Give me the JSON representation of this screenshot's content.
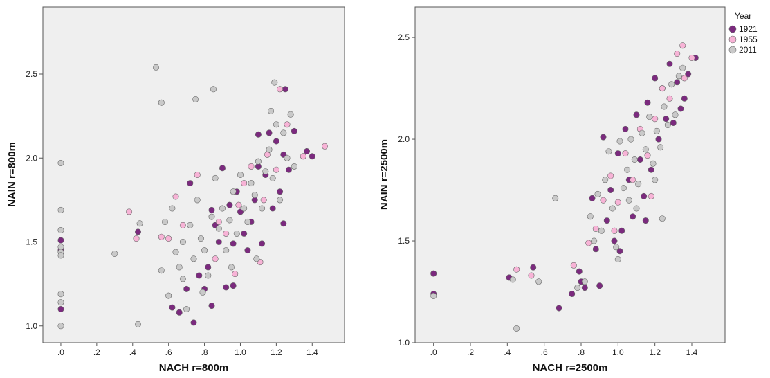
{
  "legend": {
    "title": "Year",
    "entries": [
      {
        "label": "1921",
        "color": "#7B2A7E"
      },
      {
        "label": "1955",
        "color": "#F7B3D6"
      },
      {
        "label": "2011",
        "color": "#C9C9C9"
      }
    ]
  },
  "colors": {
    "plot_background": "#EFEFEF",
    "axis": "#555555",
    "marker_edge": "#666666"
  },
  "chart_data": [
    {
      "type": "scatter",
      "xlabel": "NACH r=800m",
      "ylabel": "NAIN r=800m",
      "xlim": [
        -0.1,
        1.58
      ],
      "ylim": [
        0.9,
        2.9
      ],
      "xticks": [
        0,
        0.2,
        0.4,
        0.6,
        0.8,
        1.0,
        1.2,
        1.4
      ],
      "xtick_labels": [
        ".0",
        ".2",
        ".4",
        ".6",
        ".8",
        "1.0",
        "1.2",
        "1.4"
      ],
      "yticks": [
        1.0,
        1.5,
        2.0,
        2.5
      ],
      "ytick_labels": [
        "1.0",
        "1.5",
        "2.0",
        "2.5"
      ],
      "grid": false,
      "series": [
        {
          "name": "1921",
          "points": [
            [
              0,
              1.51
            ],
            [
              0,
              1.1
            ],
            [
              0,
              1.45
            ],
            [
              0.43,
              1.56
            ],
            [
              0.62,
              1.11
            ],
            [
              0.66,
              1.08
            ],
            [
              0.7,
              1.22
            ],
            [
              0.72,
              1.85
            ],
            [
              0.74,
              1.02
            ],
            [
              0.77,
              1.3
            ],
            [
              0.8,
              1.22
            ],
            [
              0.82,
              1.35
            ],
            [
              0.84,
              1.12
            ],
            [
              0.86,
              1.6
            ],
            [
              0.88,
              1.5
            ],
            [
              0.9,
              1.94
            ],
            [
              0.92,
              1.23
            ],
            [
              0.94,
              1.72
            ],
            [
              0.96,
              1.24
            ],
            [
              0.98,
              1.8
            ],
            [
              1.0,
              1.68
            ],
            [
              1.02,
              1.55
            ],
            [
              1.04,
              1.45
            ],
            [
              1.06,
              1.62
            ],
            [
              1.08,
              1.75
            ],
            [
              1.1,
              2.14
            ],
            [
              1.12,
              1.49
            ],
            [
              1.14,
              1.9
            ],
            [
              1.16,
              2.15
            ],
            [
              1.18,
              1.7
            ],
            [
              1.2,
              2.1
            ],
            [
              1.22,
              1.8
            ],
            [
              1.24,
              2.02
            ],
            [
              1.25,
              2.41
            ],
            [
              1.27,
              1.93
            ],
            [
              1.3,
              2.16
            ],
            [
              1.37,
              2.04
            ],
            [
              1.4,
              2.01
            ],
            [
              1.24,
              1.61
            ],
            [
              0.96,
              1.49
            ],
            [
              1.1,
              1.95
            ],
            [
              0.84,
              1.69
            ]
          ]
        },
        {
          "name": "1955",
          "points": [
            [
              0.38,
              1.68
            ],
            [
              0.42,
              1.52
            ],
            [
              0.56,
              1.53
            ],
            [
              0.6,
              1.52
            ],
            [
              0.64,
              1.77
            ],
            [
              0.68,
              1.6
            ],
            [
              0.76,
              1.9
            ],
            [
              0.86,
              1.4
            ],
            [
              0.92,
              1.55
            ],
            [
              0.97,
              1.31
            ],
            [
              1.02,
              1.85
            ],
            [
              1.06,
              1.95
            ],
            [
              1.11,
              1.38
            ],
            [
              1.15,
              2.02
            ],
            [
              1.22,
              2.41
            ],
            [
              1.26,
              2.2
            ],
            [
              1.35,
              2.01
            ],
            [
              1.47,
              2.07
            ],
            [
              1.2,
              1.93
            ],
            [
              0.99,
              1.72
            ],
            [
              1.13,
              1.75
            ],
            [
              0.88,
              1.62
            ]
          ]
        },
        {
          "name": "2011",
          "points": [
            [
              0,
              1.97
            ],
            [
              0,
              1.69
            ],
            [
              0,
              1.57
            ],
            [
              0,
              1.47
            ],
            [
              0,
              1.44
            ],
            [
              0,
              1.42
            ],
            [
              0,
              1.19
            ],
            [
              0,
              1.14
            ],
            [
              0,
              1.0
            ],
            [
              0.3,
              1.43
            ],
            [
              0.44,
              1.61
            ],
            [
              0.43,
              1.01
            ],
            [
              0.53,
              2.54
            ],
            [
              0.56,
              2.33
            ],
            [
              0.75,
              2.35
            ],
            [
              0.85,
              2.41
            ],
            [
              1.19,
              2.45
            ],
            [
              0.56,
              1.33
            ],
            [
              0.58,
              1.62
            ],
            [
              0.6,
              1.18
            ],
            [
              0.62,
              1.7
            ],
            [
              0.64,
              1.44
            ],
            [
              0.66,
              1.35
            ],
            [
              0.68,
              1.5
            ],
            [
              0.7,
              1.1
            ],
            [
              0.72,
              1.6
            ],
            [
              0.74,
              1.4
            ],
            [
              0.76,
              1.75
            ],
            [
              0.78,
              1.52
            ],
            [
              0.8,
              1.45
            ],
            [
              0.82,
              1.3
            ],
            [
              0.84,
              1.65
            ],
            [
              0.86,
              1.88
            ],
            [
              0.88,
              1.58
            ],
            [
              0.9,
              1.7
            ],
            [
              0.92,
              1.45
            ],
            [
              0.94,
              1.63
            ],
            [
              0.96,
              1.8
            ],
            [
              0.98,
              1.55
            ],
            [
              1.0,
              1.9
            ],
            [
              1.02,
              1.7
            ],
            [
              1.04,
              1.62
            ],
            [
              1.06,
              1.85
            ],
            [
              1.08,
              1.78
            ],
            [
              1.1,
              1.98
            ],
            [
              1.12,
              1.7
            ],
            [
              1.14,
              1.92
            ],
            [
              1.16,
              2.05
            ],
            [
              1.18,
              1.88
            ],
            [
              1.2,
              2.2
            ],
            [
              1.22,
              1.75
            ],
            [
              1.24,
              2.15
            ],
            [
              1.26,
              2.0
            ],
            [
              1.28,
              2.26
            ],
            [
              1.3,
              1.95
            ],
            [
              1.17,
              2.28
            ],
            [
              1.09,
              1.4
            ],
            [
              0.95,
              1.35
            ],
            [
              0.68,
              1.28
            ],
            [
              0.79,
              1.2
            ]
          ]
        }
      ]
    },
    {
      "type": "scatter",
      "xlabel": "NACH r=2500m",
      "ylabel": "NAIN r=2500m",
      "xlim": [
        -0.1,
        1.58
      ],
      "ylim": [
        1.0,
        2.65
      ],
      "xticks": [
        0,
        0.2,
        0.4,
        0.6,
        0.8,
        1.0,
        1.2,
        1.4
      ],
      "xtick_labels": [
        ".0",
        ".2",
        ".4",
        ".6",
        ".8",
        "1.0",
        "1.2",
        "1.4"
      ],
      "yticks": [
        1.0,
        1.5,
        2.0,
        2.5
      ],
      "ytick_labels": [
        "1.0",
        "1.5",
        "2.0",
        "2.5"
      ],
      "grid": false,
      "series": [
        {
          "name": "1921",
          "points": [
            [
              0,
              1.34
            ],
            [
              0,
              1.24
            ],
            [
              0.41,
              1.32
            ],
            [
              0.54,
              1.37
            ],
            [
              0.68,
              1.17
            ],
            [
              0.75,
              1.24
            ],
            [
              0.8,
              1.3
            ],
            [
              0.82,
              1.27
            ],
            [
              0.86,
              1.71
            ],
            [
              0.88,
              1.46
            ],
            [
              0.9,
              1.28
            ],
            [
              0.92,
              2.01
            ],
            [
              0.94,
              1.6
            ],
            [
              0.96,
              1.75
            ],
            [
              0.98,
              1.5
            ],
            [
              1.0,
              1.93
            ],
            [
              1.02,
              1.55
            ],
            [
              1.04,
              2.05
            ],
            [
              1.06,
              1.8
            ],
            [
              1.08,
              1.62
            ],
            [
              1.1,
              2.12
            ],
            [
              1.12,
              1.9
            ],
            [
              1.14,
              1.72
            ],
            [
              1.16,
              2.18
            ],
            [
              1.18,
              1.85
            ],
            [
              1.2,
              2.3
            ],
            [
              1.22,
              2.0
            ],
            [
              1.24,
              2.25
            ],
            [
              1.26,
              2.1
            ],
            [
              1.28,
              2.37
            ],
            [
              1.3,
              2.08
            ],
            [
              1.32,
              2.28
            ],
            [
              1.34,
              2.15
            ],
            [
              1.36,
              2.2
            ],
            [
              1.38,
              2.32
            ],
            [
              1.42,
              2.4
            ],
            [
              1.01,
              1.45
            ],
            [
              1.15,
              1.6
            ],
            [
              0.79,
              1.35
            ]
          ]
        },
        {
          "name": "1955",
          "points": [
            [
              0.45,
              1.36
            ],
            [
              0.53,
              1.33
            ],
            [
              0.76,
              1.38
            ],
            [
              0.84,
              1.49
            ],
            [
              0.88,
              1.56
            ],
            [
              0.92,
              1.7
            ],
            [
              0.96,
              1.82
            ],
            [
              1.0,
              1.69
            ],
            [
              1.04,
              1.93
            ],
            [
              1.08,
              1.8
            ],
            [
              1.12,
              2.05
            ],
            [
              1.16,
              1.92
            ],
            [
              1.2,
              2.1
            ],
            [
              1.24,
              2.25
            ],
            [
              1.28,
              2.2
            ],
            [
              1.32,
              2.42
            ],
            [
              1.35,
              2.46
            ],
            [
              1.4,
              2.4
            ],
            [
              1.36,
              2.3
            ],
            [
              1.18,
              1.72
            ],
            [
              0.98,
              1.55
            ]
          ]
        },
        {
          "name": "2011",
          "points": [
            [
              0,
              1.23
            ],
            [
              0.43,
              1.31
            ],
            [
              0.45,
              1.07
            ],
            [
              0.57,
              1.3
            ],
            [
              0.66,
              1.71
            ],
            [
              0.78,
              1.27
            ],
            [
              0.82,
              1.3
            ],
            [
              0.85,
              1.62
            ],
            [
              0.87,
              1.5
            ],
            [
              0.89,
              1.73
            ],
            [
              0.91,
              1.55
            ],
            [
              0.93,
              1.8
            ],
            [
              0.95,
              1.94
            ],
            [
              0.97,
              1.66
            ],
            [
              0.99,
              1.47
            ],
            [
              1.01,
              1.99
            ],
            [
              1.03,
              1.76
            ],
            [
              1.05,
              1.85
            ],
            [
              1.07,
              2.0
            ],
            [
              1.09,
              1.9
            ],
            [
              1.11,
              1.78
            ],
            [
              1.13,
              2.03
            ],
            [
              1.15,
              1.95
            ],
            [
              1.17,
              2.11
            ],
            [
              1.19,
              1.88
            ],
            [
              1.21,
              2.04
            ],
            [
              1.23,
              1.96
            ],
            [
              1.25,
              2.16
            ],
            [
              1.27,
              2.07
            ],
            [
              1.29,
              2.27
            ],
            [
              1.31,
              2.12
            ],
            [
              1.33,
              2.31
            ],
            [
              1.35,
              2.35
            ],
            [
              1.24,
              1.61
            ],
            [
              1.2,
              1.8
            ],
            [
              1.1,
              1.66
            ],
            [
              1.0,
              1.41
            ],
            [
              1.06,
              1.7
            ]
          ]
        }
      ]
    }
  ]
}
